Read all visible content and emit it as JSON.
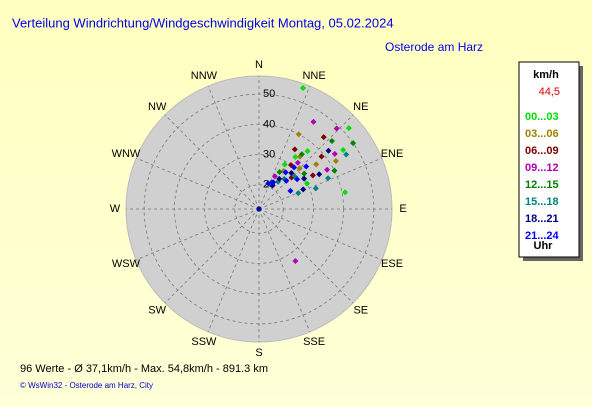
{
  "chart_data": {
    "type": "polar-scatter",
    "title": "Verteilung Windrichtung/Windgeschwindigkeit  Montag, 05.02.2024",
    "subtitle": "Osterode am Harz",
    "direction_labels": [
      "N",
      "NNE",
      "NE",
      "ENE",
      "E",
      "ESE",
      "SE",
      "SSE",
      "S",
      "SSW",
      "SW",
      "WSW",
      "W",
      "WNW",
      "NW",
      "NNW"
    ],
    "rlim": [
      12,
      56
    ],
    "rticks": [
      20,
      30,
      40,
      50
    ],
    "grid": true,
    "legend_title": "km/h",
    "current_value": "44,5",
    "legend_footer": "Uhr",
    "series": [
      {
        "name": "00...03",
        "color": "#00dd00",
        "x": [
          20,
          48,
          40,
          30,
          62,
          79,
          55,
          35
        ],
        "values": [
          54.6,
          52,
          37,
          29,
          30,
          41,
          46,
          33
        ]
      },
      {
        "name": "03...06",
        "color": "#a08000",
        "x": [
          28,
          38,
          45,
          52,
          33,
          58
        ],
        "values": [
          40,
          34,
          31,
          36,
          27,
          42
        ]
      },
      {
        "name": "06...09",
        "color": "#800000",
        "x": [
          42,
          50,
          36,
          58,
          46,
          31
        ],
        "values": [
          44,
          39,
          30,
          33,
          27,
          35
        ]
      },
      {
        "name": "09...12",
        "color": "#b000b0",
        "x": [
          32,
          44,
          54,
          60,
          40,
          145,
          26
        ],
        "values": [
          46,
          49,
          43,
          38,
          32,
          33,
          24
        ]
      },
      {
        "name": "12...15",
        "color": "#008000",
        "x": [
          55,
          47,
          38,
          63,
          52,
          29
        ],
        "values": [
          50,
          45,
          35,
          40,
          31,
          26
        ]
      },
      {
        "name": "15...18",
        "color": "#008080",
        "x": [
          58,
          66,
          48,
          40,
          70,
          35,
          24,
          68
        ],
        "values": [
          46,
          37,
          28,
          25,
          32,
          23,
          21,
          26
        ]
      },
      {
        "name": "18...21",
        "color": "#000080",
        "x": [
          50,
          60,
          42,
          34,
          56,
          66,
          30
        ],
        "values": [
          42,
          35,
          28,
          24,
          30,
          28,
          21
        ]
      },
      {
        "name": "21...24",
        "color": "#0000ff",
        "x": [
          36,
          44,
          52,
          28,
          60,
          40,
          48,
          20
        ],
        "values": [
          27,
          25,
          28,
          22,
          24,
          30,
          33,
          21
        ]
      }
    ],
    "footer": "96 Werte   -   Ø 37,1km/h   -   Max. 54,8km/h   -   891.3 km",
    "copyright": "© WsWin32  -  Osterode am Harz, City"
  }
}
